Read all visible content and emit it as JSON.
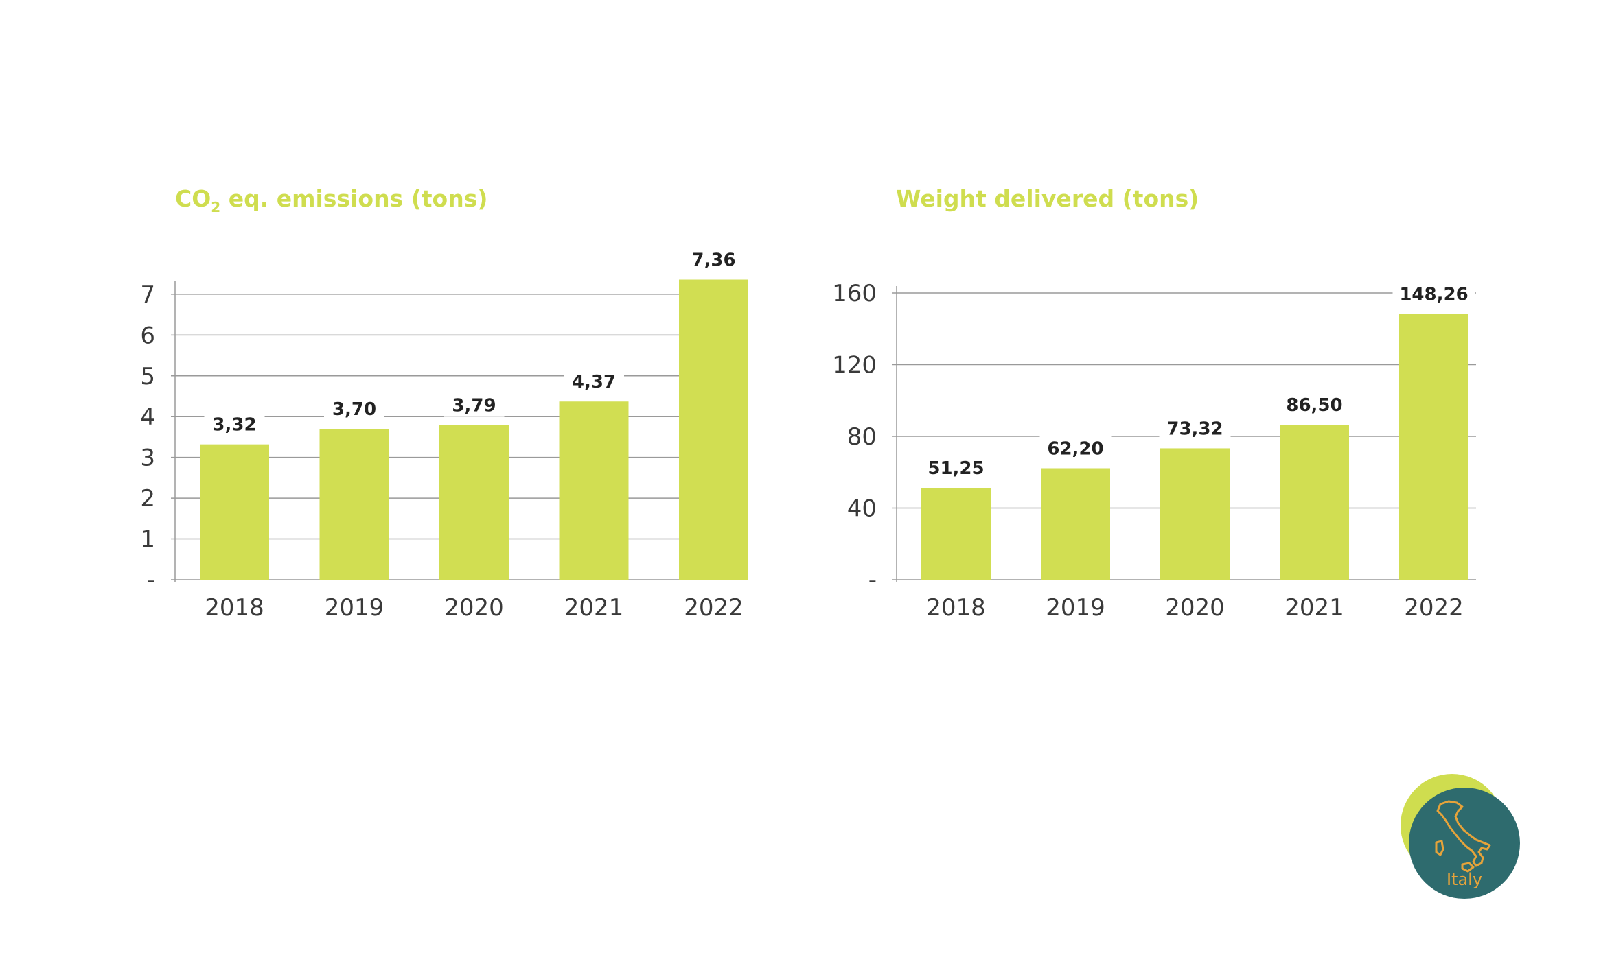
{
  "chart_data": [
    {
      "type": "bar",
      "title_main": "CO",
      "title_sub": "2",
      "title_rest": " eq. emissions (tons)",
      "categories": [
        "2018",
        "2019",
        "2020",
        "2021",
        "2022"
      ],
      "values": [
        3.32,
        3.7,
        3.79,
        4.37,
        7.36
      ],
      "data_labels": [
        "3,32",
        "3,70",
        "3,79",
        "4,37",
        "7,36"
      ],
      "yticks": [
        {
          "value": 0,
          "label": "-"
        },
        {
          "value": 1,
          "label": "1"
        },
        {
          "value": 2,
          "label": "2"
        },
        {
          "value": 3,
          "label": "3"
        },
        {
          "value": 4,
          "label": "4"
        },
        {
          "value": 5,
          "label": "5"
        },
        {
          "value": 6,
          "label": "6"
        },
        {
          "value": 7,
          "label": "7"
        }
      ],
      "ylim": [
        0,
        7.15
      ],
      "grid": true,
      "bar_color": "#d1de52"
    },
    {
      "type": "bar",
      "title": "Weight delivered (tons)",
      "categories": [
        "2018",
        "2019",
        "2020",
        "2021",
        "2022"
      ],
      "values": [
        51.25,
        62.2,
        73.32,
        86.5,
        148.26
      ],
      "data_labels": [
        "51,25",
        "62,20",
        "73,32",
        "86,50",
        "148,26"
      ],
      "yticks": [
        {
          "value": 0,
          "label": "-"
        },
        {
          "value": 40,
          "label": "40"
        },
        {
          "value": 80,
          "label": "80"
        },
        {
          "value": 120,
          "label": "120"
        },
        {
          "value": 160,
          "label": "160"
        }
      ],
      "ylim": [
        0,
        160
      ],
      "grid": true,
      "bar_color": "#d1de52"
    }
  ],
  "badge": {
    "label": "Italy",
    "icon": "italy-map-icon",
    "outer_color": "#cfdd4f",
    "inner_color": "#2e6b6e",
    "map_color": "#e6a33a"
  }
}
